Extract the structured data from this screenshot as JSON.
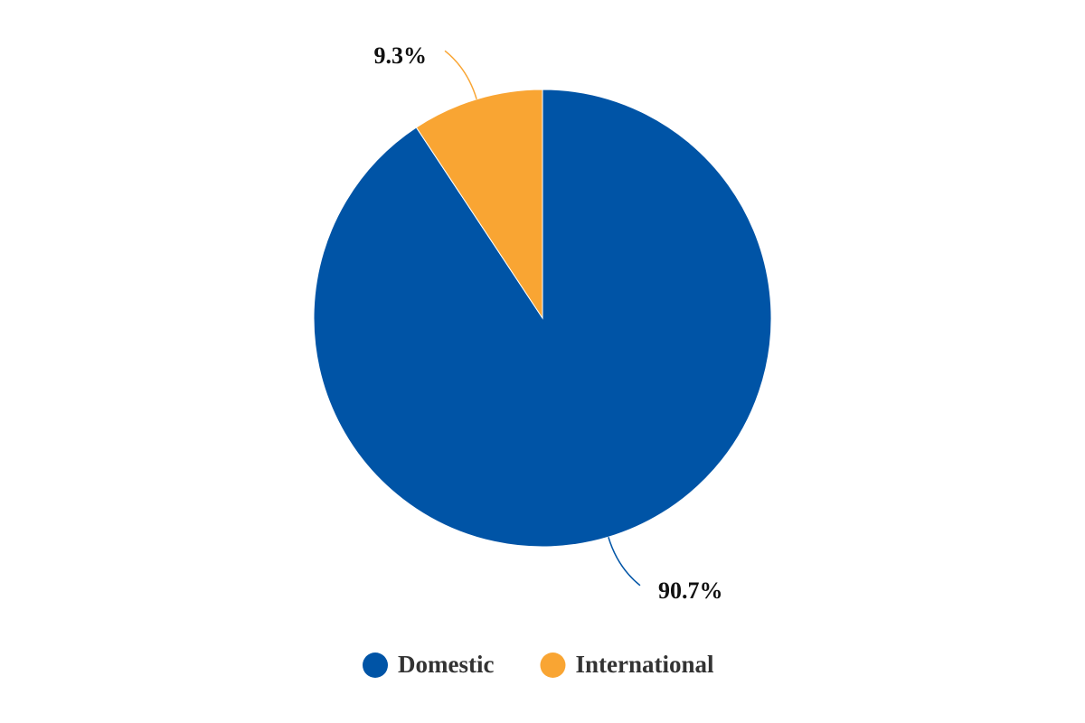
{
  "chart_data": {
    "type": "pie",
    "categories": [
      "Domestic",
      "International"
    ],
    "values": [
      90.7,
      9.3
    ],
    "value_labels": [
      "90.7%",
      "9.3%"
    ],
    "colors": [
      "#0054a6",
      "#f9a533"
    ],
    "legend": "bottom"
  }
}
